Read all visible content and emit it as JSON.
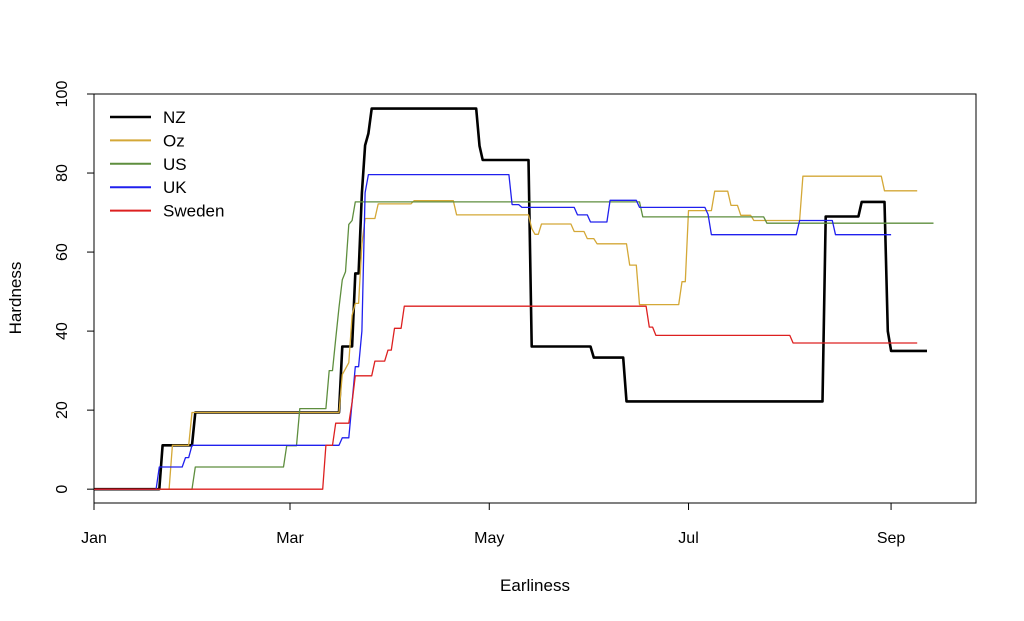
{
  "chart_data": {
    "type": "line",
    "title": "",
    "xlabel": "Earliness",
    "ylabel": "Hardness",
    "x_axis": {
      "type": "date",
      "range": [
        "2020-01-01",
        "2020-09-27"
      ],
      "ticks": [
        {
          "date": "2020-01-01",
          "label": "Jan"
        },
        {
          "date": "2020-03-01",
          "label": "Mar"
        },
        {
          "date": "2020-05-01",
          "label": "May"
        },
        {
          "date": "2020-07-01",
          "label": "Jul"
        },
        {
          "date": "2020-09-01",
          "label": "Sep"
        }
      ]
    },
    "y_axis": {
      "range": [
        -3.5,
        100
      ],
      "ticks": [
        0,
        20,
        40,
        60,
        80,
        100
      ]
    },
    "grid": false,
    "legend": {
      "placement": "top-left"
    },
    "series": [
      {
        "name": "NZ",
        "color": "#000000",
        "width": 2.6,
        "points": [
          [
            "2020-01-01",
            0
          ],
          [
            "2020-01-21",
            0
          ],
          [
            "2020-01-22",
            11.1
          ],
          [
            "2020-01-31",
            11.1
          ],
          [
            "2020-02-01",
            19.4
          ],
          [
            "2020-03-16",
            19.4
          ],
          [
            "2020-03-17",
            36.1
          ],
          [
            "2020-03-20",
            36.1
          ],
          [
            "2020-03-21",
            54.6
          ],
          [
            "2020-03-22",
            54.6
          ],
          [
            "2020-03-23",
            75
          ],
          [
            "2020-03-24",
            87
          ],
          [
            "2020-03-25",
            90
          ],
          [
            "2020-03-26",
            96.3
          ],
          [
            "2020-04-27",
            96.3
          ],
          [
            "2020-04-28",
            86.9
          ],
          [
            "2020-04-29",
            83.3
          ],
          [
            "2020-05-13",
            83.3
          ],
          [
            "2020-05-14",
            36.1
          ],
          [
            "2020-06-01",
            36.1
          ],
          [
            "2020-06-02",
            33.3
          ],
          [
            "2020-06-11",
            33.3
          ],
          [
            "2020-06-12",
            22.2
          ],
          [
            "2020-08-11",
            22.2
          ],
          [
            "2020-08-12",
            69
          ],
          [
            "2020-08-22",
            69
          ],
          [
            "2020-08-23",
            72.7
          ],
          [
            "2020-08-30",
            72.7
          ],
          [
            "2020-08-31",
            40
          ],
          [
            "2020-09-01",
            35
          ],
          [
            "2020-09-12",
            35
          ]
        ]
      },
      {
        "name": "Oz",
        "color": "#d4a837",
        "width": 1.3,
        "points": [
          [
            "2020-01-01",
            0
          ],
          [
            "2020-01-24",
            0
          ],
          [
            "2020-01-25",
            11.1
          ],
          [
            "2020-01-30",
            11.1
          ],
          [
            "2020-01-31",
            19.4
          ],
          [
            "2020-03-16",
            19.4
          ],
          [
            "2020-03-17",
            29
          ],
          [
            "2020-03-19",
            32
          ],
          [
            "2020-03-20",
            44
          ],
          [
            "2020-03-21",
            47
          ],
          [
            "2020-03-22",
            47
          ],
          [
            "2020-03-23",
            62
          ],
          [
            "2020-03-24",
            68.5
          ],
          [
            "2020-03-27",
            68.5
          ],
          [
            "2020-03-28",
            72.2
          ],
          [
            "2020-04-07",
            72.2
          ],
          [
            "2020-04-08",
            73
          ],
          [
            "2020-04-20",
            73
          ],
          [
            "2020-04-21",
            69.4
          ],
          [
            "2020-05-13",
            69.4
          ],
          [
            "2020-05-14",
            66
          ],
          [
            "2020-05-15",
            64.5
          ],
          [
            "2020-05-16",
            64.5
          ],
          [
            "2020-05-17",
            67.1
          ],
          [
            "2020-05-26",
            67.1
          ],
          [
            "2020-05-27",
            65.2
          ],
          [
            "2020-05-30",
            65.2
          ],
          [
            "2020-05-31",
            63.4
          ],
          [
            "2020-06-02",
            63.4
          ],
          [
            "2020-06-03",
            62.1
          ],
          [
            "2020-06-12",
            62.1
          ],
          [
            "2020-06-13",
            56.7
          ],
          [
            "2020-06-15",
            56.7
          ],
          [
            "2020-06-16",
            46.7
          ],
          [
            "2020-06-28",
            46.7
          ],
          [
            "2020-06-29",
            52.5
          ],
          [
            "2020-06-30",
            52.5
          ],
          [
            "2020-06-31",
            70.5
          ],
          [
            "2020-07-08",
            70.5
          ],
          [
            "2020-07-09",
            75.4
          ],
          [
            "2020-07-13",
            75.4
          ],
          [
            "2020-07-14",
            71.8
          ],
          [
            "2020-07-16",
            71.8
          ],
          [
            "2020-07-17",
            69.3
          ],
          [
            "2020-07-20",
            69.3
          ],
          [
            "2020-07-21",
            68
          ],
          [
            "2020-07-29",
            68
          ],
          [
            "2020-08-01",
            68
          ],
          [
            "2020-08-04",
            68
          ],
          [
            "2020-08-05",
            79.2
          ],
          [
            "2020-08-29",
            79.2
          ],
          [
            "2020-08-30",
            75.5
          ],
          [
            "2020-09-09",
            75.5
          ]
        ]
      },
      {
        "name": "US",
        "color": "#5e8e3e",
        "width": 1.3,
        "points": [
          [
            "2020-01-01",
            0
          ],
          [
            "2020-01-31",
            0
          ],
          [
            "2020-02-01",
            5.6
          ],
          [
            "2020-02-28",
            5.6
          ],
          [
            "2020-02-29",
            11
          ],
          [
            "2020-03-03",
            11
          ],
          [
            "2020-03-04",
            20.4
          ],
          [
            "2020-03-12",
            20.4
          ],
          [
            "2020-03-13",
            30
          ],
          [
            "2020-03-14",
            30
          ],
          [
            "2020-03-15",
            38
          ],
          [
            "2020-03-16",
            46
          ],
          [
            "2020-03-17",
            53
          ],
          [
            "2020-03-18",
            55
          ],
          [
            "2020-03-19",
            67
          ],
          [
            "2020-03-20",
            68
          ],
          [
            "2020-03-21",
            72.7
          ],
          [
            "2020-06-16",
            72.7
          ],
          [
            "2020-06-17",
            68.9
          ],
          [
            "2020-07-24",
            68.9
          ],
          [
            "2020-07-25",
            67.3
          ],
          [
            "2020-09-14",
            67.3
          ]
        ]
      },
      {
        "name": "UK",
        "color": "#2020ee",
        "width": 1.3,
        "points": [
          [
            "2020-01-01",
            0
          ],
          [
            "2020-01-20",
            0
          ],
          [
            "2020-01-21",
            5.6
          ],
          [
            "2020-01-28",
            5.6
          ],
          [
            "2020-01-29",
            8
          ],
          [
            "2020-01-30",
            8
          ],
          [
            "2020-01-31",
            11.1
          ],
          [
            "2020-03-16",
            11.1
          ],
          [
            "2020-03-17",
            13
          ],
          [
            "2020-03-19",
            13
          ],
          [
            "2020-03-20",
            22
          ],
          [
            "2020-03-21",
            31
          ],
          [
            "2020-03-22",
            31
          ],
          [
            "2020-03-23",
            40
          ],
          [
            "2020-03-24",
            75
          ],
          [
            "2020-03-25",
            79.6
          ],
          [
            "2020-05-07",
            79.6
          ],
          [
            "2020-05-08",
            72
          ],
          [
            "2020-05-10",
            72
          ],
          [
            "2020-05-11",
            71.3
          ],
          [
            "2020-05-27",
            71.3
          ],
          [
            "2020-05-28",
            69.4
          ],
          [
            "2020-05-31",
            69.4
          ],
          [
            "2020-06-01",
            67.6
          ],
          [
            "2020-06-06",
            67.6
          ],
          [
            "2020-06-07",
            73.1
          ],
          [
            "2020-06-15",
            73.1
          ],
          [
            "2020-06-16",
            71.3
          ],
          [
            "2020-07-06",
            71.3
          ],
          [
            "2020-07-07",
            69.5
          ],
          [
            "2020-07-08",
            64.4
          ],
          [
            "2020-08-03",
            64.4
          ],
          [
            "2020-08-04",
            68
          ],
          [
            "2020-08-14",
            68
          ],
          [
            "2020-08-15",
            64.4
          ],
          [
            "2020-09-01",
            64.4
          ]
        ]
      },
      {
        "name": "Sweden",
        "color": "#dd2020",
        "width": 1.3,
        "points": [
          [
            "2020-01-01",
            0
          ],
          [
            "2020-03-11",
            0
          ],
          [
            "2020-03-12",
            11.1
          ],
          [
            "2020-03-14",
            11.1
          ],
          [
            "2020-03-15",
            16.7
          ],
          [
            "2020-03-19",
            16.7
          ],
          [
            "2020-03-20",
            22
          ],
          [
            "2020-03-21",
            28.7
          ],
          [
            "2020-03-26",
            28.7
          ],
          [
            "2020-03-27",
            32.4
          ],
          [
            "2020-03-30",
            32.4
          ],
          [
            "2020-03-31",
            35.2
          ],
          [
            "2020-04-01",
            35.2
          ],
          [
            "2020-04-02",
            40.7
          ],
          [
            "2020-04-04",
            40.7
          ],
          [
            "2020-04-05",
            46.3
          ],
          [
            "2020-06-18",
            46.3
          ],
          [
            "2020-06-19",
            41
          ],
          [
            "2020-06-20",
            41
          ],
          [
            "2020-06-21",
            38.9
          ],
          [
            "2020-08-01",
            38.9
          ],
          [
            "2020-08-02",
            37
          ],
          [
            "2020-09-09",
            37
          ]
        ]
      }
    ]
  }
}
